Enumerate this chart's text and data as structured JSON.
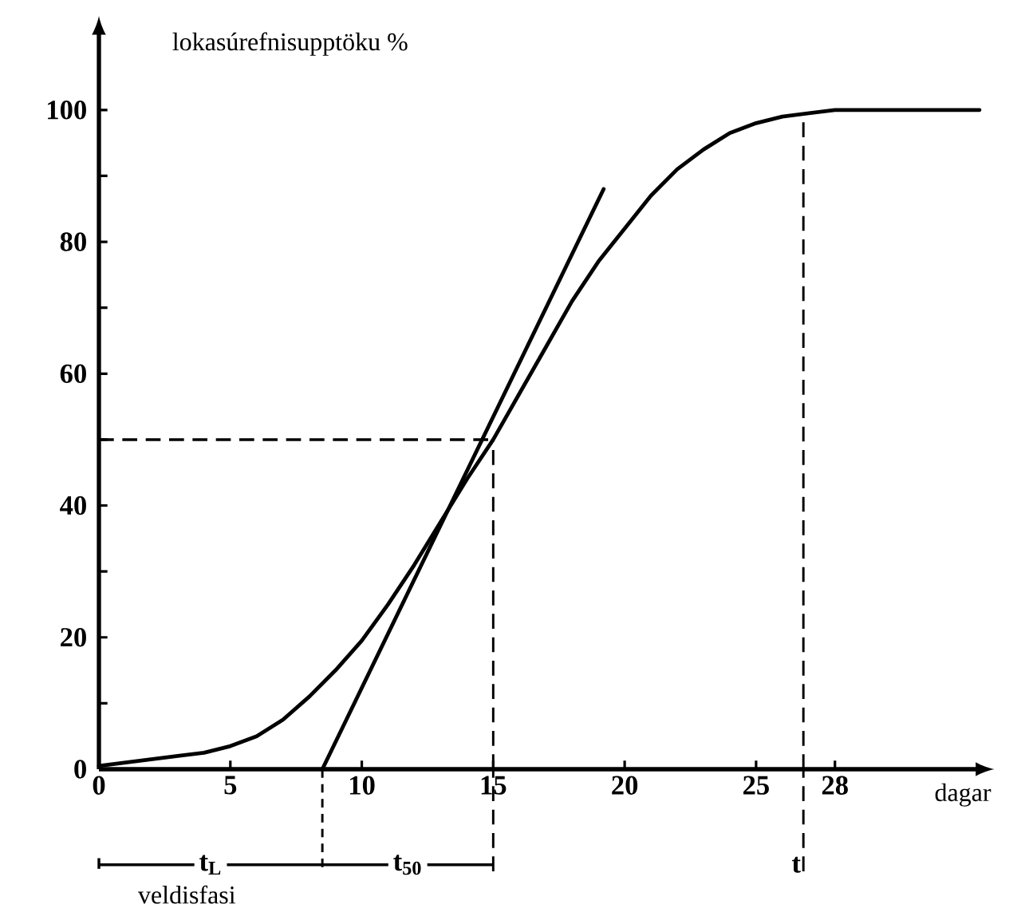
{
  "chart_data": {
    "type": "line",
    "xlabel": "dagar",
    "ylabel": "lokasúrefnisupptöku %",
    "xlim": [
      0,
      33.5
    ],
    "ylim": [
      0,
      112
    ],
    "xticks": [
      0,
      5,
      10,
      15,
      20,
      25,
      28
    ],
    "yticks": [
      0,
      {
        "value": 10,
        "label": null
      },
      20,
      {
        "value": 30,
        "label": null
      },
      40,
      {
        "value": 50,
        "label": null
      },
      60,
      {
        "value": 70,
        "label": null
      },
      80,
      {
        "value": 90,
        "label": null
      },
      100
    ],
    "series": [
      {
        "color": "#000000",
        "x": [
          0,
          1,
          2,
          3,
          4,
          5,
          6,
          7,
          8,
          9,
          10,
          11,
          12,
          13,
          14,
          15,
          16,
          17,
          18,
          19,
          20,
          21,
          22,
          23,
          24,
          25,
          26,
          27,
          28,
          29,
          31,
          33.5
        ],
        "values": [
          0.5,
          1,
          1.5,
          2,
          2.5,
          3.5,
          5,
          7.5,
          11,
          15,
          19.5,
          25,
          31,
          37.5,
          44,
          50,
          57,
          64,
          71,
          77,
          82,
          87,
          91,
          94,
          96.5,
          98,
          99,
          99.5,
          100,
          100,
          100,
          100
        ]
      },
      {
        "color": "#000000",
        "x": [
          8.5,
          19.2
        ],
        "values": [
          0,
          88
        ]
      }
    ],
    "ref_lines": [
      {
        "axis": "y",
        "value": 50,
        "line_style": "dashed"
      },
      {
        "axis": "x",
        "value": 15,
        "line_style": "dashed"
      },
      {
        "axis": "x",
        "value": 26.8,
        "label": "t",
        "line_style": "dashed"
      }
    ],
    "annotations": [
      "t$_{L}$",
      "t$_{50}$",
      "veldisfasi"
    ]
  }
}
